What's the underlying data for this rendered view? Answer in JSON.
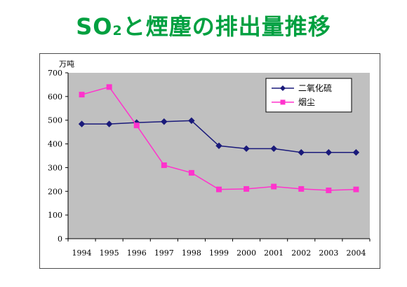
{
  "title": {
    "prefix": "SO",
    "subscript": "2",
    "suffix": "と煙塵の排出量推移"
  },
  "chart_data": {
    "type": "line",
    "title": "SO2と煙塵の排出量推移",
    "unit_label": "万吨",
    "xlabel": "",
    "ylabel": "",
    "x": [
      "1994",
      "1995",
      "1996",
      "1997",
      "1998",
      "1999",
      "2000",
      "2001",
      "2002",
      "2003",
      "2004"
    ],
    "ylim": [
      0,
      700
    ],
    "yticks": [
      0,
      100,
      200,
      300,
      400,
      500,
      600,
      700
    ],
    "grid": false,
    "legend_position": "top-right",
    "plot_background": "#c0c0c0",
    "series": [
      {
        "name": "二氧化硫",
        "color": "#1a1a7a",
        "marker": "diamond",
        "values": [
          484,
          484,
          490,
          494,
          498,
          392,
          380,
          380,
          364,
          364,
          364
        ]
      },
      {
        "name": "烟尘",
        "color": "#ff33cc",
        "marker": "square",
        "values": [
          608,
          640,
          478,
          310,
          278,
          208,
          210,
          220,
          210,
          204,
          208
        ]
      }
    ]
  },
  "colors": {
    "title": "#00a040",
    "axis": "#000000",
    "frame": "#4d4d4d"
  }
}
